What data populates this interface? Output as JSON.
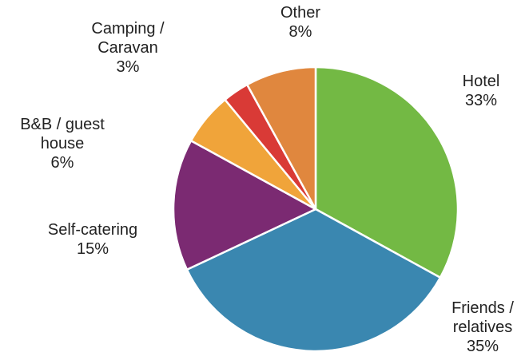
{
  "chart_data": {
    "type": "pie",
    "title": "",
    "slices": [
      {
        "name": "Hotel",
        "label_lines": [
          "Hotel"
        ],
        "value": 33,
        "value_label": "33%",
        "color": "#73b944"
      },
      {
        "name": "Friends / relatives",
        "label_lines": [
          "Friends /",
          "relatives"
        ],
        "value": 35,
        "value_label": "35%",
        "color": "#3a87b0"
      },
      {
        "name": "Self-catering",
        "label_lines": [
          "Self-catering"
        ],
        "value": 15,
        "value_label": "15%",
        "color": "#7b2a72"
      },
      {
        "name": "B&B / guest house",
        "label_lines": [
          "B&B / guest",
          "house"
        ],
        "value": 6,
        "value_label": "6%",
        "color": "#f0a43a"
      },
      {
        "name": "Camping / Caravan",
        "label_lines": [
          "Camping /",
          "Caravan"
        ],
        "value": 3,
        "value_label": "3%",
        "color": "#d93a36"
      },
      {
        "name": "Other",
        "label_lines": [
          "Other"
        ],
        "value": 8,
        "value_label": "8%",
        "color": "#e0873e"
      }
    ],
    "start": "12 o'clock",
    "direction": "clockwise",
    "legend": "none"
  }
}
